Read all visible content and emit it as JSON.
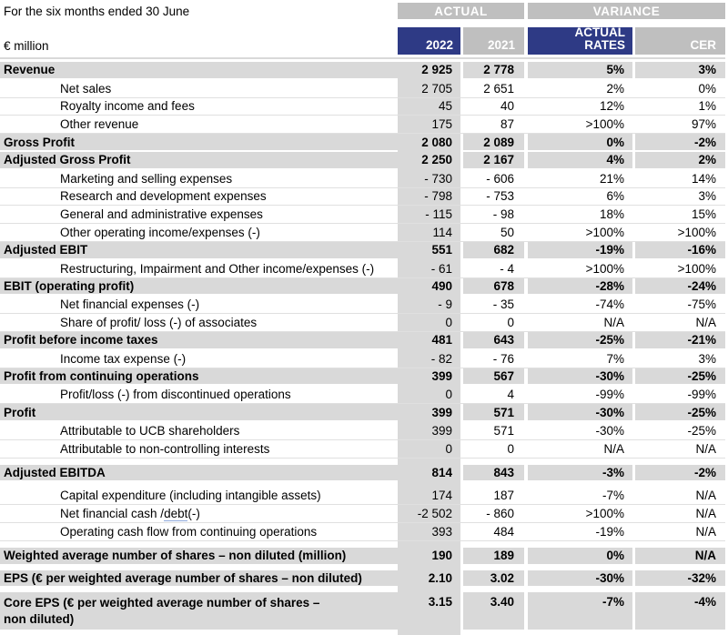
{
  "header": {
    "period_label": "For the six months ended 30 June",
    "unit_label": "€ million",
    "group_actual": "ACTUAL",
    "group_variance": "VARIANCE",
    "col_2022": "2022",
    "col_2021": "2021",
    "col_actual_rates": "ACTUAL\nRATES",
    "col_cer": "CER"
  },
  "colors": {
    "navy_header": "#2e3a85",
    "grey_banner": "#bfbfbf",
    "grey_row": "#d9d9d9"
  },
  "table": {
    "columns": [
      "2022",
      "2021",
      "ACTUAL RATES",
      "CER"
    ],
    "rows": [
      {
        "label": "Revenue",
        "bold": true,
        "values": [
          "2 925",
          "2 778",
          "5%",
          "3%"
        ]
      },
      {
        "label": "Net sales",
        "indent": true,
        "values": [
          "2 705",
          "2 651",
          "2%",
          "0%"
        ]
      },
      {
        "label": "Royalty income and fees",
        "indent": true,
        "values": [
          "45",
          "40",
          "12%",
          "1%"
        ]
      },
      {
        "label": "Other revenue",
        "indent": true,
        "values": [
          "175",
          "87",
          ">100%",
          "97%"
        ]
      },
      {
        "label": "Gross Profit",
        "bold": true,
        "values": [
          "2 080",
          "2 089",
          "0%",
          "-2%"
        ]
      },
      {
        "label": "Adjusted Gross Profit",
        "bold": true,
        "values": [
          "2 250",
          "2 167",
          "4%",
          "2%"
        ]
      },
      {
        "label": "Marketing and selling expenses",
        "indent": true,
        "values": [
          "- 730",
          "- 606",
          "21%",
          "14%"
        ]
      },
      {
        "label": "Research and development expenses",
        "indent": true,
        "values": [
          "- 798",
          "- 753",
          "6%",
          "3%"
        ]
      },
      {
        "label": "General and administrative expenses",
        "indent": true,
        "values": [
          "- 115",
          "- 98",
          "18%",
          "15%"
        ]
      },
      {
        "label": "Other operating income/expenses (-)",
        "indent": true,
        "values": [
          "114",
          "50",
          ">100%",
          ">100%"
        ]
      },
      {
        "label": "Adjusted EBIT",
        "bold": true,
        "values": [
          "551",
          "682",
          "-19%",
          "-16%"
        ]
      },
      {
        "label": "Restructuring, Impairment and Other income/expenses (-)",
        "indent": true,
        "values": [
          "- 61",
          "- 4",
          ">100%",
          ">100%"
        ]
      },
      {
        "label": "EBIT (operating profit)",
        "bold": true,
        "values": [
          "490",
          "678",
          "-28%",
          "-24%"
        ]
      },
      {
        "label": "Net financial expenses (-)",
        "indent": true,
        "values": [
          "- 9",
          "- 35",
          "-74%",
          "-75%"
        ]
      },
      {
        "label": "Share of profit/ loss (-) of associates",
        "indent": true,
        "values": [
          "0",
          "0",
          "N/A",
          "N/A"
        ]
      },
      {
        "label": "Profit before income taxes",
        "bold": true,
        "values": [
          "481",
          "643",
          "-25%",
          "-21%"
        ]
      },
      {
        "label": "Income tax expense (-)",
        "indent": true,
        "values": [
          "- 82",
          "- 76",
          "7%",
          "3%"
        ]
      },
      {
        "label": "Profit from continuing operations",
        "bold": true,
        "values": [
          "399",
          "567",
          "-30%",
          "-25%"
        ]
      },
      {
        "label": "Profit/loss (-) from discontinued operations",
        "indent": true,
        "values": [
          "0",
          "4",
          "-99%",
          "-99%"
        ]
      },
      {
        "label": "Profit",
        "bold": true,
        "values": [
          "399",
          "571",
          "-30%",
          "-25%"
        ]
      },
      {
        "label": "Attributable to UCB shareholders",
        "indent": true,
        "values": [
          "399",
          "571",
          "-30%",
          "-25%"
        ]
      },
      {
        "label": "Attributable to non-controlling interests",
        "indent": true,
        "values": [
          "0",
          "0",
          "N/A",
          "N/A"
        ]
      },
      {
        "label": "Adjusted EBITDA",
        "bold": true,
        "gap_before": true,
        "values": [
          "814",
          "843",
          "-3%",
          "-2%"
        ]
      },
      {
        "label": "Capital expenditure (including intangible assets)",
        "indent": true,
        "gap_before": true,
        "values": [
          "174",
          "187",
          "-7%",
          "N/A"
        ]
      },
      {
        "label": "Net financial cash / debt  (-)",
        "indent": true,
        "label_parts": {
          "prefix": "Net financial cash / ",
          "underlined": "debt ",
          "suffix": " (-)"
        },
        "values": [
          "-2 502",
          "- 860",
          ">100%",
          "N/A"
        ]
      },
      {
        "label": "Operating cash flow from continuing operations",
        "indent": true,
        "values": [
          "393",
          "484",
          "-19%",
          "N/A"
        ]
      },
      {
        "label": "Weighted average number of shares – non diluted (million)",
        "bold": true,
        "gap_before": true,
        "values": [
          "190",
          "189",
          "0%",
          "N/A"
        ]
      },
      {
        "label": "EPS (€ per weighted average number of shares – non diluted)",
        "bold": true,
        "gap_before": true,
        "values": [
          "2.10",
          "3.02",
          "-30%",
          "-32%"
        ]
      },
      {
        "label": "Core EPS (€ per weighted average number of shares – non diluted)",
        "bold": true,
        "gap_before": true,
        "tall": true,
        "values": [
          "3.15",
          "3.40",
          "-7%",
          "-4%"
        ]
      }
    ]
  }
}
